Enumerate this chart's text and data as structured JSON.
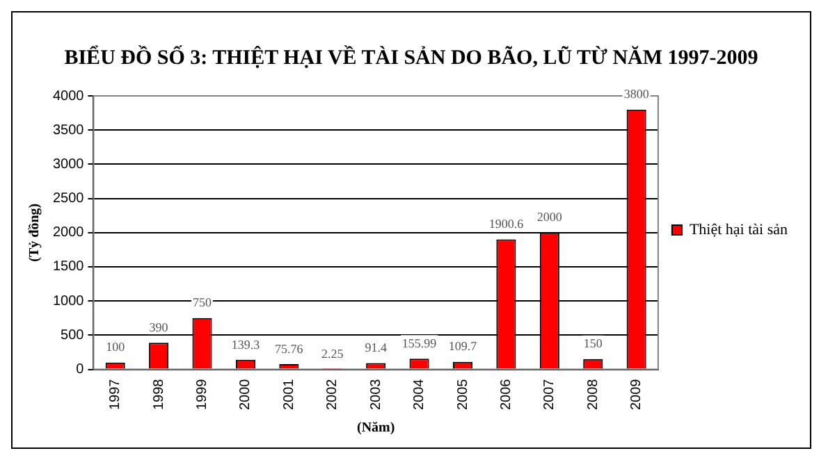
{
  "chart_data": {
    "type": "bar",
    "title": "BIỂU ĐỒ SỐ 3: THIỆT HẠI VỀ TÀI SẢN DO BÃO, LŨ TỪ NĂM 1997-2009",
    "xlabel": "(Năm)",
    "ylabel": "(Tỷ đồng)",
    "categories": [
      "1997",
      "1998",
      "1999",
      "2000",
      "2001",
      "2002",
      "2003",
      "2004",
      "2005",
      "2006",
      "2007",
      "2008",
      "2009"
    ],
    "series": [
      {
        "name": "Thiệt hại tài sản",
        "color": "#ff0000",
        "values": [
          100,
          390,
          750,
          139.3,
          75.76,
          2.25,
          91.4,
          155.99,
          109.7,
          1900.6,
          2000,
          150,
          3800
        ]
      }
    ],
    "ylim": [
      0,
      4000
    ],
    "yticks": [
      0,
      500,
      1000,
      1500,
      2000,
      2500,
      3000,
      3500,
      4000
    ],
    "grid": "y",
    "legend": "right",
    "data_labels": true
  }
}
